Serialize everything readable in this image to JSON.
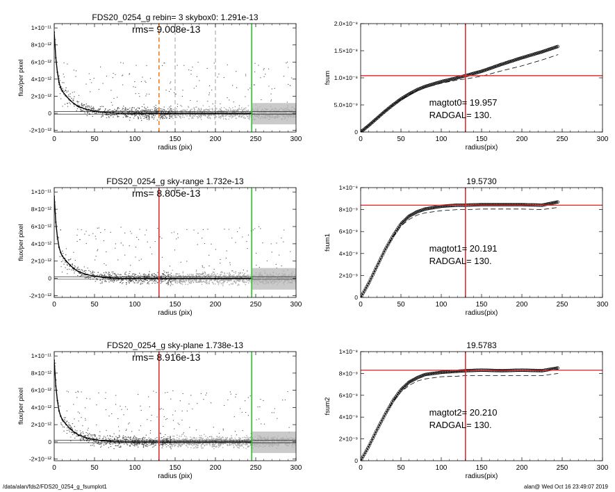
{
  "footer": {
    "left": "/data/alan/fds2/FDS20_0254_g_fsumplot1",
    "right": "alan@  Wed Oct 16 23:49:07 2019"
  },
  "chart_data": [
    {
      "type": "scatter",
      "title": "FDS20_0254_g rebin= 3    skybox0:  1.291e-13",
      "annotation": "rms= 9.008e-13",
      "xlabel": "radius (pix)",
      "ylabel": "flux/per pixel",
      "xlim": [
        0,
        300
      ],
      "ylim": [
        -2.2e-12,
        1.05e-11
      ],
      "xticks": [
        0,
        50,
        100,
        150,
        200,
        250,
        300
      ],
      "xtick_labels": [
        "0",
        "50",
        "100",
        "150",
        "200",
        "250",
        "300"
      ],
      "yticks": [
        -2e-12,
        0,
        2e-12,
        4e-12,
        6e-12,
        8e-12,
        1e-11
      ],
      "ytick_labels": [
        "-2×10⁻¹²",
        "0",
        "2×10⁻¹²",
        "4×10⁻¹²",
        "6×10⁻¹²",
        "8×10⁻¹²",
        "1×10⁻¹¹"
      ],
      "profile": {
        "x": [
          0,
          2,
          4,
          6,
          8,
          10,
          15,
          20,
          25,
          30,
          40,
          50,
          60,
          70,
          80,
          100,
          150,
          200,
          245
        ],
        "y": [
          9.5e-12,
          6.5e-12,
          4.8e-12,
          3.6e-12,
          3e-12,
          2.6e-12,
          2e-12,
          1.5e-12,
          1.1e-12,
          8e-13,
          4.5e-13,
          2.5e-13,
          1.2e-13,
          5e-14,
          2e-14,
          0,
          0,
          0,
          0
        ]
      },
      "vlines": [
        {
          "x": 130,
          "color": "#f08020",
          "style": "dashed"
        },
        {
          "x": 150,
          "color": "#888888",
          "style": "dashed"
        },
        {
          "x": 200,
          "color": "#888888",
          "style": "dashed"
        },
        {
          "x": 245,
          "color": "#22cc22",
          "style": "solid"
        }
      ]
    },
    {
      "type": "line",
      "title": "",
      "annotation": [
        "magtot0=  19.957",
        "RADGAL=    130."
      ],
      "xlabel": "radius(pix)",
      "ylabel": "fsum",
      "xlim": [
        0,
        300
      ],
      "ylim": [
        0,
        2e-08
      ],
      "xticks": [
        0,
        50,
        100,
        150,
        200,
        250,
        300
      ],
      "xtick_labels": [
        "0",
        "50",
        "100",
        "150",
        "200",
        "250",
        "300"
      ],
      "yticks": [
        0,
        5e-09,
        1e-08,
        1.5e-08,
        2e-08
      ],
      "ytick_labels": [
        "0",
        "5.0×10⁻⁹",
        "1.0×10⁻⁸",
        "1.5×10⁻⁸",
        "2.0×10⁻⁸"
      ],
      "series": [
        {
          "style": "circles",
          "x": [
            0,
            10,
            20,
            30,
            40,
            50,
            60,
            70,
            80,
            100,
            120,
            130,
            150,
            175,
            200,
            225,
            245
          ],
          "y": [
            0,
            1.2e-09,
            2.5e-09,
            3.8e-09,
            5e-09,
            6.1e-09,
            7e-09,
            7.8e-09,
            8.4e-09,
            9.3e-09,
            1e-08,
            1.04e-08,
            1.12e-08,
            1.25e-08,
            1.37e-08,
            1.48e-08,
            1.58e-08
          ]
        },
        {
          "style": "dashed",
          "x": [
            0,
            10,
            20,
            30,
            40,
            50,
            60,
            70,
            80,
            100,
            120,
            130,
            150,
            175,
            200,
            225,
            245
          ],
          "y": [
            0,
            1.2e-09,
            2.5e-09,
            3.8e-09,
            5e-09,
            6e-09,
            6.9e-09,
            7.6e-09,
            8.2e-09,
            9e-09,
            9.6e-09,
            9.8e-09,
            1.03e-08,
            1.13e-08,
            1.22e-08,
            1.33e-08,
            1.43e-08
          ]
        }
      ],
      "hline": {
        "y": 1.04e-08,
        "color": "#e03030"
      },
      "vline": {
        "x": 130,
        "color": "#e03030"
      }
    },
    {
      "type": "scatter",
      "title": "FDS20_0254_g sky-range  1.732e-13",
      "annotation": "rms= 8.805e-13",
      "xlabel": "radius (pix)",
      "ylabel": "flux/per pixel",
      "xlim": [
        0,
        300
      ],
      "ylim": [
        -2.2e-12,
        1.05e-11
      ],
      "xticks": [
        0,
        50,
        100,
        150,
        200,
        250,
        300
      ],
      "xtick_labels": [
        "0",
        "50",
        "100",
        "150",
        "200",
        "250",
        "300"
      ],
      "yticks": [
        -2e-12,
        0,
        2e-12,
        4e-12,
        6e-12,
        8e-12,
        1e-11
      ],
      "ytick_labels": [
        "-2×10⁻¹²",
        "0",
        "2×10⁻¹²",
        "4×10⁻¹²",
        "6×10⁻¹²",
        "8×10⁻¹²",
        "1×10⁻¹¹"
      ],
      "profile": {
        "x": [
          0,
          2,
          4,
          6,
          8,
          10,
          15,
          20,
          25,
          30,
          40,
          50,
          60,
          70,
          80,
          100,
          150,
          200,
          245
        ],
        "y": [
          9.5e-12,
          6.5e-12,
          4.8e-12,
          3.6e-12,
          3e-12,
          2.6e-12,
          2e-12,
          1.5e-12,
          1.1e-12,
          8e-13,
          4.5e-13,
          2.5e-13,
          1.2e-13,
          5e-14,
          2e-14,
          0,
          0,
          0,
          0
        ]
      },
      "vlines": [
        {
          "x": 130,
          "color": "#e03030",
          "style": "solid"
        },
        {
          "x": 245,
          "color": "#22cc22",
          "style": "solid"
        }
      ]
    },
    {
      "type": "line",
      "title": "19.5730",
      "annotation": [
        "magtot1=  20.191",
        "RADGAL=    130."
      ],
      "xlabel": "radius(pix)",
      "ylabel": "fsum1",
      "xlim": [
        0,
        300
      ],
      "ylim": [
        0,
        1e-08
      ],
      "xticks": [
        0,
        50,
        100,
        150,
        200,
        250,
        300
      ],
      "xtick_labels": [
        "0",
        "50",
        "100",
        "150",
        "200",
        "250",
        "300"
      ],
      "yticks": [
        0,
        2e-09,
        4e-09,
        6e-09,
        8e-09,
        1e-08
      ],
      "ytick_labels": [
        "0",
        "2×10⁻⁹",
        "4×10⁻⁹",
        "6×10⁻⁹",
        "8×10⁻⁹",
        "1×10⁻⁸"
      ],
      "series": [
        {
          "style": "circles",
          "x": [
            0,
            10,
            20,
            30,
            40,
            50,
            60,
            70,
            80,
            100,
            120,
            130,
            150,
            175,
            200,
            225,
            245
          ],
          "y": [
            0,
            1.3e-09,
            2.8e-09,
            4.3e-09,
            5.6e-09,
            6.7e-09,
            7.4e-09,
            7.8e-09,
            8.05e-09,
            8.3e-09,
            8.4e-09,
            8.4e-09,
            8.45e-09,
            8.45e-09,
            8.45e-09,
            8.4e-09,
            8.7e-09
          ]
        },
        {
          "style": "dashed",
          "x": [
            0,
            10,
            20,
            30,
            40,
            50,
            60,
            70,
            80,
            100,
            120,
            130,
            150,
            175,
            200,
            225,
            245
          ],
          "y": [
            0,
            1.3e-09,
            2.8e-09,
            4.3e-09,
            5.5e-09,
            6.5e-09,
            7.1e-09,
            7.5e-09,
            7.7e-09,
            7.9e-09,
            8e-09,
            8e-09,
            8.05e-09,
            8.05e-09,
            8.05e-09,
            8e-09,
            8.2e-09
          ]
        }
      ],
      "hline": {
        "y": 8.4e-09,
        "color": "#e03030"
      },
      "vline": {
        "x": 130,
        "color": "#e03030"
      }
    },
    {
      "type": "scatter",
      "title": "FDS20_0254_g sky-plane  1.738e-13",
      "annotation": "rms= 8.916e-13",
      "xlabel": "radius (pix)",
      "ylabel": "flux/per pixel",
      "xlim": [
        0,
        300
      ],
      "ylim": [
        -2.2e-12,
        1.05e-11
      ],
      "xticks": [
        0,
        50,
        100,
        150,
        200,
        250,
        300
      ],
      "xtick_labels": [
        "0",
        "50",
        "100",
        "150",
        "200",
        "250",
        "300"
      ],
      "yticks": [
        -2e-12,
        0,
        2e-12,
        4e-12,
        6e-12,
        8e-12,
        1e-11
      ],
      "ytick_labels": [
        "-2×10⁻¹²",
        "0",
        "2×10⁻¹²",
        "4×10⁻¹²",
        "6×10⁻¹²",
        "8×10⁻¹²",
        "1×10⁻¹¹"
      ],
      "profile": {
        "x": [
          0,
          2,
          4,
          6,
          8,
          10,
          15,
          20,
          25,
          30,
          40,
          50,
          60,
          70,
          80,
          100,
          150,
          200,
          245
        ],
        "y": [
          9.5e-12,
          6.5e-12,
          4.8e-12,
          3.6e-12,
          3e-12,
          2.6e-12,
          2e-12,
          1.5e-12,
          1.1e-12,
          8e-13,
          4.5e-13,
          2.5e-13,
          1.2e-13,
          5e-14,
          2e-14,
          0,
          0,
          0,
          0
        ]
      },
      "vlines": [
        {
          "x": 130,
          "color": "#e03030",
          "style": "solid"
        },
        {
          "x": 245,
          "color": "#22cc22",
          "style": "solid"
        }
      ]
    },
    {
      "type": "line",
      "title": "19.5783",
      "annotation": [
        "magtot2=  20.210",
        "RADGAL=    130."
      ],
      "xlabel": "radius(pix)",
      "ylabel": "fsum2",
      "xlim": [
        0,
        300
      ],
      "ylim": [
        0,
        1e-08
      ],
      "xticks": [
        0,
        50,
        100,
        150,
        200,
        250,
        300
      ],
      "xtick_labels": [
        "0",
        "50",
        "100",
        "150",
        "200",
        "250",
        "300"
      ],
      "yticks": [
        0,
        2e-09,
        4e-09,
        6e-09,
        8e-09,
        1e-08
      ],
      "ytick_labels": [
        "0",
        "2×10⁻⁹",
        "4×10⁻⁹",
        "6×10⁻⁹",
        "8×10⁻⁹",
        "1×10⁻⁸"
      ],
      "series": [
        {
          "style": "circles",
          "x": [
            0,
            10,
            20,
            30,
            40,
            50,
            60,
            70,
            80,
            100,
            120,
            130,
            150,
            175,
            200,
            225,
            245
          ],
          "y": [
            0,
            1.3e-09,
            2.8e-09,
            4.2e-09,
            5.5e-09,
            6.5e-09,
            7.2e-09,
            7.6e-09,
            7.9e-09,
            8.1e-09,
            8.2e-09,
            8.25e-09,
            8.3e-09,
            8.25e-09,
            8.3e-09,
            8.25e-09,
            8.5e-09
          ]
        },
        {
          "style": "dashed",
          "x": [
            0,
            10,
            20,
            30,
            40,
            50,
            60,
            70,
            80,
            100,
            120,
            130,
            150,
            175,
            200,
            225,
            245
          ],
          "y": [
            0,
            1.3e-09,
            2.8e-09,
            4.2e-09,
            5.4e-09,
            6.3e-09,
            6.9e-09,
            7.3e-09,
            7.5e-09,
            7.7e-09,
            7.75e-09,
            7.8e-09,
            7.8e-09,
            7.8e-09,
            7.8e-09,
            7.8e-09,
            8e-09
          ]
        }
      ],
      "hline": {
        "y": 8.3e-09,
        "color": "#e03030"
      },
      "vline": {
        "x": 130,
        "color": "#e03030"
      }
    }
  ]
}
